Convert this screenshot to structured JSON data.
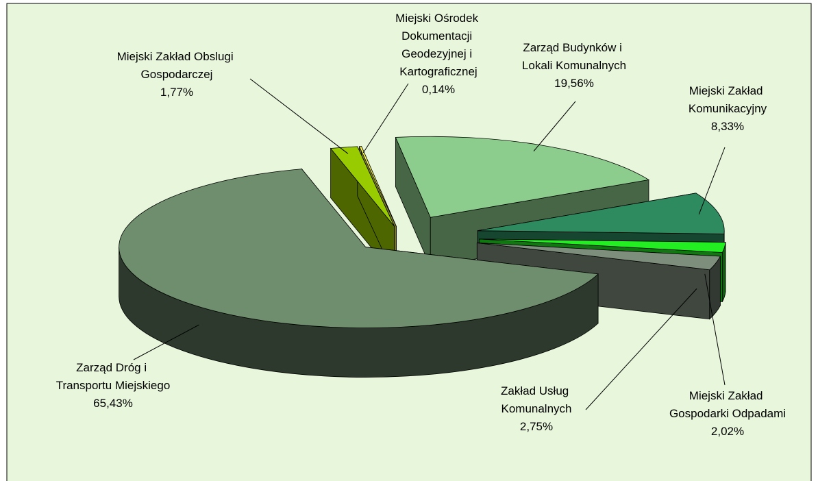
{
  "chart_data": {
    "type": "pie3d",
    "categories": [
      "Miejski Zakład Obslugi Gospodarczej",
      "Miejski Ośrodek Dokumentacji Geodezyjnej i Kartograficznej",
      "Zarząd Budynków i Lokali Komunalnych",
      "Miejski Zakład Komunikacyjny",
      "Miejski Zakład Gospodarki Odpadami",
      "Zakład Usług Komunalnych",
      "Zarząd Dróg i Transportu Miejskiego"
    ],
    "values": [
      1.77,
      0.14,
      19.56,
      8.33,
      2.02,
      2.75,
      65.43
    ],
    "value_labels": [
      "1,77%",
      "0,14%",
      "19,56%",
      "8,33%",
      "2,02%",
      "2,75%",
      "65,43%"
    ],
    "colors": [
      "#99cc00",
      "#ffff55",
      "#8ccc8c",
      "#2e8b60",
      "#22ee22",
      "#7e8e7c",
      "#6e8e6e"
    ]
  }
}
